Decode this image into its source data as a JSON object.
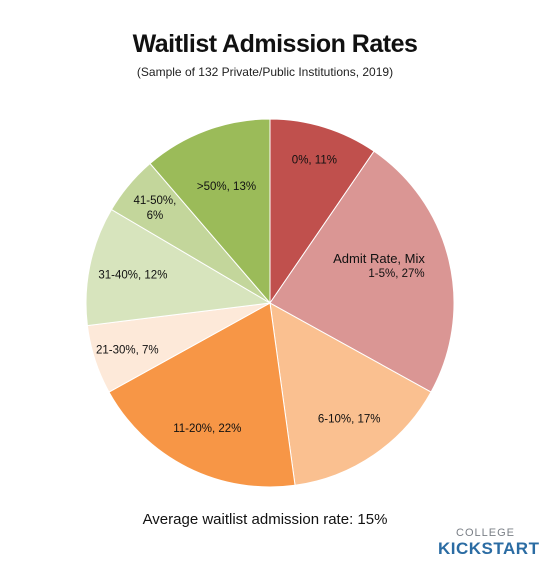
{
  "chart_data": {
    "type": "pie",
    "title": "Waitlist Admission Rates",
    "subtitle": "(Sample of 132 Private/Public Institutions, 2019)",
    "legend_title": "Admit Rate, Mix",
    "slices": [
      {
        "label": "0%, 11%",
        "category": "0%",
        "value": 11,
        "color": "#c0504d"
      },
      {
        "label": "1-5%, 27%",
        "category": "1-5%",
        "value": 27,
        "color": "#da9694"
      },
      {
        "label": "6-10%, 17%",
        "category": "6-10%",
        "value": 17,
        "color": "#fac090"
      },
      {
        "label": "11-20%, 22%",
        "category": "11-20%",
        "value": 22,
        "color": "#f79646"
      },
      {
        "label": "21-30%, 7%",
        "category": "21-30%",
        "value": 7,
        "color": "#fde9d9"
      },
      {
        "label": "31-40%, 12%",
        "category": "31-40%",
        "value": 12,
        "color": "#d7e4bd"
      },
      {
        "label": "41-50%, 6%",
        "category": "41-50%",
        "value": 6,
        "color": "#c3d69b"
      },
      {
        "label": ">50%, 13%",
        "category": ">50%",
        "value": 13,
        "color": "#9bbb59"
      }
    ],
    "note": "Average waitlist admission rate: 15%"
  },
  "logo": {
    "top_text": "COLLEGE",
    "bottom_text": "KICKSTART"
  }
}
